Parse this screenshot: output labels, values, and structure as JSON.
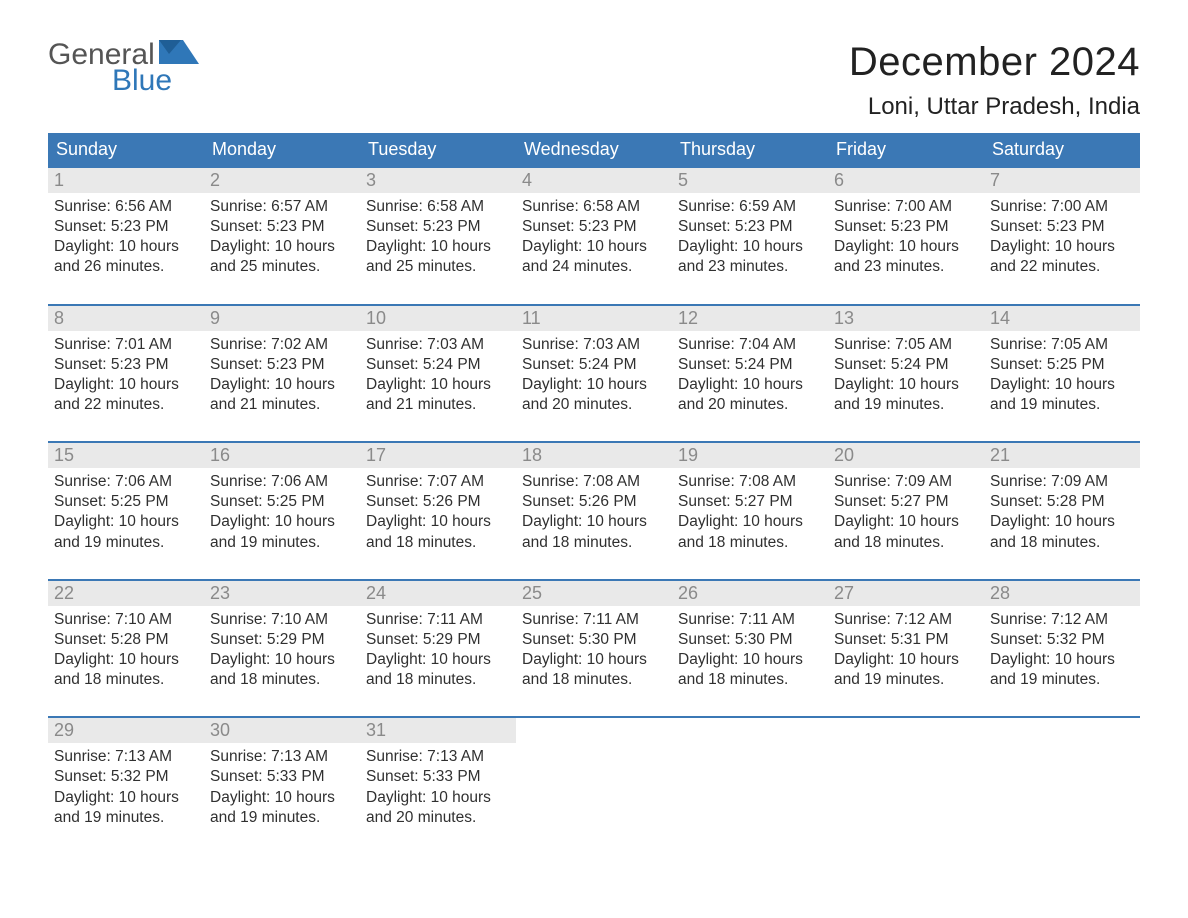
{
  "brand": {
    "general": "General",
    "blue": "Blue"
  },
  "title": "December 2024",
  "location": "Loni, Uttar Pradesh, India",
  "colors": {
    "header_bg": "#3b78b5",
    "header_text": "#ffffff",
    "daynum_bg": "#e9e9e9",
    "daynum_text": "#8a8a8a",
    "body_text": "#303030",
    "rule": "#3b78b5",
    "page_bg": "#ffffff",
    "logo_blue": "#2f77b8",
    "logo_grey": "#555555"
  },
  "typography": {
    "title_fontsize": 40,
    "location_fontsize": 24,
    "dow_fontsize": 18,
    "daynum_fontsize": 18,
    "body_fontsize": 15.5,
    "logo_fontsize": 30,
    "font_family": "Arial"
  },
  "dow": [
    "Sunday",
    "Monday",
    "Tuesday",
    "Wednesday",
    "Thursday",
    "Friday",
    "Saturday"
  ],
  "weeks": [
    [
      {
        "n": "1",
        "sunrise": "Sunrise: 6:56 AM",
        "sunset": "Sunset: 5:23 PM",
        "day1": "Daylight: 10 hours",
        "day2": "and 26 minutes."
      },
      {
        "n": "2",
        "sunrise": "Sunrise: 6:57 AM",
        "sunset": "Sunset: 5:23 PM",
        "day1": "Daylight: 10 hours",
        "day2": "and 25 minutes."
      },
      {
        "n": "3",
        "sunrise": "Sunrise: 6:58 AM",
        "sunset": "Sunset: 5:23 PM",
        "day1": "Daylight: 10 hours",
        "day2": "and 25 minutes."
      },
      {
        "n": "4",
        "sunrise": "Sunrise: 6:58 AM",
        "sunset": "Sunset: 5:23 PM",
        "day1": "Daylight: 10 hours",
        "day2": "and 24 minutes."
      },
      {
        "n": "5",
        "sunrise": "Sunrise: 6:59 AM",
        "sunset": "Sunset: 5:23 PM",
        "day1": "Daylight: 10 hours",
        "day2": "and 23 minutes."
      },
      {
        "n": "6",
        "sunrise": "Sunrise: 7:00 AM",
        "sunset": "Sunset: 5:23 PM",
        "day1": "Daylight: 10 hours",
        "day2": "and 23 minutes."
      },
      {
        "n": "7",
        "sunrise": "Sunrise: 7:00 AM",
        "sunset": "Sunset: 5:23 PM",
        "day1": "Daylight: 10 hours",
        "day2": "and 22 minutes."
      }
    ],
    [
      {
        "n": "8",
        "sunrise": "Sunrise: 7:01 AM",
        "sunset": "Sunset: 5:23 PM",
        "day1": "Daylight: 10 hours",
        "day2": "and 22 minutes."
      },
      {
        "n": "9",
        "sunrise": "Sunrise: 7:02 AM",
        "sunset": "Sunset: 5:23 PM",
        "day1": "Daylight: 10 hours",
        "day2": "and 21 minutes."
      },
      {
        "n": "10",
        "sunrise": "Sunrise: 7:03 AM",
        "sunset": "Sunset: 5:24 PM",
        "day1": "Daylight: 10 hours",
        "day2": "and 21 minutes."
      },
      {
        "n": "11",
        "sunrise": "Sunrise: 7:03 AM",
        "sunset": "Sunset: 5:24 PM",
        "day1": "Daylight: 10 hours",
        "day2": "and 20 minutes."
      },
      {
        "n": "12",
        "sunrise": "Sunrise: 7:04 AM",
        "sunset": "Sunset: 5:24 PM",
        "day1": "Daylight: 10 hours",
        "day2": "and 20 minutes."
      },
      {
        "n": "13",
        "sunrise": "Sunrise: 7:05 AM",
        "sunset": "Sunset: 5:24 PM",
        "day1": "Daylight: 10 hours",
        "day2": "and 19 minutes."
      },
      {
        "n": "14",
        "sunrise": "Sunrise: 7:05 AM",
        "sunset": "Sunset: 5:25 PM",
        "day1": "Daylight: 10 hours",
        "day2": "and 19 minutes."
      }
    ],
    [
      {
        "n": "15",
        "sunrise": "Sunrise: 7:06 AM",
        "sunset": "Sunset: 5:25 PM",
        "day1": "Daylight: 10 hours",
        "day2": "and 19 minutes."
      },
      {
        "n": "16",
        "sunrise": "Sunrise: 7:06 AM",
        "sunset": "Sunset: 5:25 PM",
        "day1": "Daylight: 10 hours",
        "day2": "and 19 minutes."
      },
      {
        "n": "17",
        "sunrise": "Sunrise: 7:07 AM",
        "sunset": "Sunset: 5:26 PM",
        "day1": "Daylight: 10 hours",
        "day2": "and 18 minutes."
      },
      {
        "n": "18",
        "sunrise": "Sunrise: 7:08 AM",
        "sunset": "Sunset: 5:26 PM",
        "day1": "Daylight: 10 hours",
        "day2": "and 18 minutes."
      },
      {
        "n": "19",
        "sunrise": "Sunrise: 7:08 AM",
        "sunset": "Sunset: 5:27 PM",
        "day1": "Daylight: 10 hours",
        "day2": "and 18 minutes."
      },
      {
        "n": "20",
        "sunrise": "Sunrise: 7:09 AM",
        "sunset": "Sunset: 5:27 PM",
        "day1": "Daylight: 10 hours",
        "day2": "and 18 minutes."
      },
      {
        "n": "21",
        "sunrise": "Sunrise: 7:09 AM",
        "sunset": "Sunset: 5:28 PM",
        "day1": "Daylight: 10 hours",
        "day2": "and 18 minutes."
      }
    ],
    [
      {
        "n": "22",
        "sunrise": "Sunrise: 7:10 AM",
        "sunset": "Sunset: 5:28 PM",
        "day1": "Daylight: 10 hours",
        "day2": "and 18 minutes."
      },
      {
        "n": "23",
        "sunrise": "Sunrise: 7:10 AM",
        "sunset": "Sunset: 5:29 PM",
        "day1": "Daylight: 10 hours",
        "day2": "and 18 minutes."
      },
      {
        "n": "24",
        "sunrise": "Sunrise: 7:11 AM",
        "sunset": "Sunset: 5:29 PM",
        "day1": "Daylight: 10 hours",
        "day2": "and 18 minutes."
      },
      {
        "n": "25",
        "sunrise": "Sunrise: 7:11 AM",
        "sunset": "Sunset: 5:30 PM",
        "day1": "Daylight: 10 hours",
        "day2": "and 18 minutes."
      },
      {
        "n": "26",
        "sunrise": "Sunrise: 7:11 AM",
        "sunset": "Sunset: 5:30 PM",
        "day1": "Daylight: 10 hours",
        "day2": "and 18 minutes."
      },
      {
        "n": "27",
        "sunrise": "Sunrise: 7:12 AM",
        "sunset": "Sunset: 5:31 PM",
        "day1": "Daylight: 10 hours",
        "day2": "and 19 minutes."
      },
      {
        "n": "28",
        "sunrise": "Sunrise: 7:12 AM",
        "sunset": "Sunset: 5:32 PM",
        "day1": "Daylight: 10 hours",
        "day2": "and 19 minutes."
      }
    ],
    [
      {
        "n": "29",
        "sunrise": "Sunrise: 7:13 AM",
        "sunset": "Sunset: 5:32 PM",
        "day1": "Daylight: 10 hours",
        "day2": "and 19 minutes."
      },
      {
        "n": "30",
        "sunrise": "Sunrise: 7:13 AM",
        "sunset": "Sunset: 5:33 PM",
        "day1": "Daylight: 10 hours",
        "day2": "and 19 minutes."
      },
      {
        "n": "31",
        "sunrise": "Sunrise: 7:13 AM",
        "sunset": "Sunset: 5:33 PM",
        "day1": "Daylight: 10 hours",
        "day2": "and 20 minutes."
      },
      null,
      null,
      null,
      null
    ]
  ]
}
